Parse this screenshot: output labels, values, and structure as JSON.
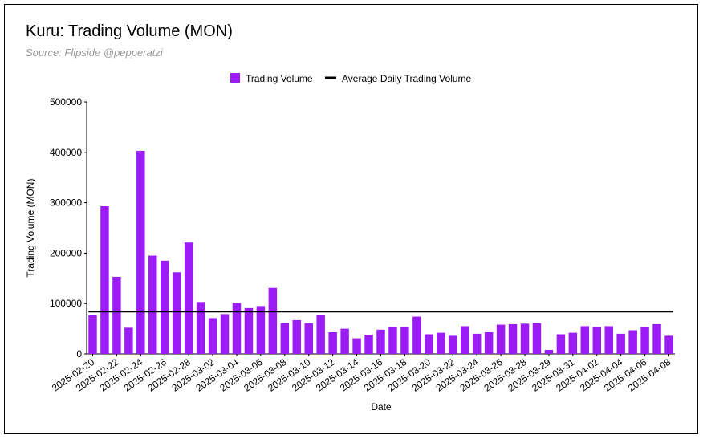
{
  "chart_data": {
    "type": "bar",
    "title": "Kuru: Trading Volume (MON)",
    "subtitle": "Source: Flipside @pepperatzi",
    "x_label": "Date",
    "y_label": "Trading Volume (MON)",
    "categories": [
      "2025-02-20",
      null,
      "2025-02-22",
      null,
      "2025-02-24",
      null,
      "2025-02-26",
      null,
      "2025-02-28",
      null,
      "2025-03-02",
      null,
      "2025-03-04",
      null,
      "2025-03-06",
      null,
      "2025-03-08",
      null,
      "2025-03-10",
      null,
      "2025-03-12",
      null,
      "2025-03-14",
      null,
      "2025-03-16",
      null,
      "2025-03-18",
      null,
      "2025-03-20",
      null,
      "2025-03-22",
      null,
      "2025-03-24",
      null,
      "2025-03-26",
      null,
      "2025-03-28",
      null,
      "2025-03-29",
      null,
      "2025-03-31",
      null,
      "2025-04-02",
      null,
      "2025-04-04",
      null,
      "2025-04-06",
      null,
      "2025-04-08"
    ],
    "series": [
      {
        "name": "Trading Volume",
        "color": "#9b1cf5",
        "values": [
          77000,
          293000,
          153000,
          52000,
          403000,
          195000,
          185000,
          162000,
          221000,
          103000,
          71000,
          79000,
          101000,
          91000,
          95000,
          131000,
          61000,
          67000,
          61000,
          78000,
          43000,
          50000,
          31000,
          38000,
          48000,
          53000,
          53000,
          74000,
          39000,
          42000,
          36000,
          55000,
          40000,
          43000,
          58000,
          59000,
          60000,
          61000,
          8000,
          39000,
          42000,
          55000,
          53000,
          55000,
          40000,
          47000,
          53000,
          59000,
          36000
        ]
      }
    ],
    "average": {
      "name": "Average Daily Trading Volume",
      "color": "#000000",
      "value": 84000
    },
    "ylim": [
      0,
      500000
    ],
    "yticks": [
      0,
      100000,
      200000,
      300000,
      400000,
      500000
    ],
    "legend": "top"
  }
}
